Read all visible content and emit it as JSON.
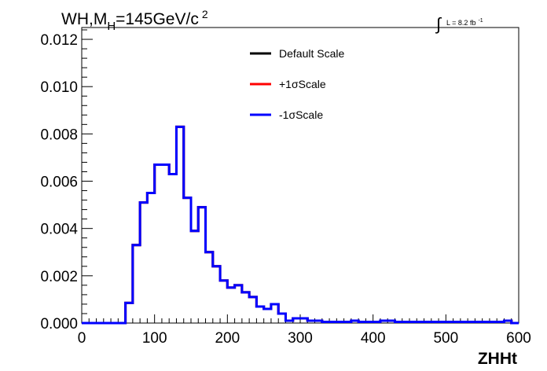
{
  "chart_data": {
    "type": "line",
    "title": {
      "base": "WH,M",
      "subscript": "H",
      "value": "=145GeV/c",
      "superscript": "2"
    },
    "lumi_label": {
      "symbol": "∫",
      "text": "L = 8.2 fb",
      "superscript": "-1"
    },
    "xlabel": "ZHHt",
    "ylabel": "",
    "xlim": [
      0,
      600
    ],
    "ylim": [
      0,
      0.0125
    ],
    "x_ticks": [
      0,
      100,
      200,
      300,
      400,
      500,
      600
    ],
    "x_tick_labels": [
      "0",
      "100",
      "200",
      "300",
      "400",
      "500",
      "600"
    ],
    "y_ticks": [
      0,
      0.002,
      0.004,
      0.006,
      0.008,
      0.01,
      0.012
    ],
    "y_tick_labels": [
      "0.000",
      "0.002",
      "0.004",
      "0.006",
      "0.008",
      "0.010",
      "0.012"
    ],
    "grid": false,
    "legend_position": "top-center",
    "bin_edges": [
      0,
      10,
      20,
      30,
      40,
      50,
      60,
      70,
      80,
      90,
      100,
      110,
      120,
      130,
      140,
      150,
      160,
      170,
      180,
      190,
      200,
      210,
      220,
      230,
      240,
      250,
      260,
      270,
      280,
      290,
      300,
      310,
      320,
      330,
      340,
      350,
      360,
      370,
      380,
      390,
      400,
      410,
      420,
      430,
      440,
      450,
      460,
      470,
      480,
      490,
      500,
      510,
      520,
      530,
      540,
      550,
      560,
      570,
      580,
      590,
      600
    ],
    "series": [
      {
        "name": "Default Scale",
        "color": "#000000",
        "values": [
          0,
          0,
          0,
          0,
          0,
          0,
          0.00085,
          0.0033,
          0.0051,
          0.0055,
          0.0067,
          0.0067,
          0.0063,
          0.0083,
          0.0053,
          0.0039,
          0.0049,
          0.003,
          0.0024,
          0.0018,
          0.0015,
          0.0016,
          0.0013,
          0.0011,
          0.0007,
          0.0006,
          0.0008,
          0.0004,
          0.0001,
          0.0002,
          0.0002,
          0.0001,
          0.0001,
          5e-05,
          5e-05,
          5e-05,
          5e-05,
          0.0001,
          5e-05,
          5e-05,
          5e-05,
          0.0001,
          0.0001,
          5e-05,
          5e-05,
          5e-05,
          5e-05,
          5e-05,
          5e-05,
          5e-05,
          5e-05,
          5e-05,
          5e-05,
          5e-05,
          5e-05,
          5e-05,
          5e-05,
          5e-05,
          0.0001,
          0
        ]
      },
      {
        "name": "+1σScale",
        "color": "#ff0000",
        "values": [
          0,
          0,
          0,
          0,
          0,
          0,
          0.00085,
          0.0033,
          0.0051,
          0.0055,
          0.0067,
          0.0067,
          0.0063,
          0.0083,
          0.0053,
          0.0039,
          0.0049,
          0.003,
          0.0024,
          0.0018,
          0.0015,
          0.0016,
          0.0013,
          0.0011,
          0.0007,
          0.0006,
          0.0008,
          0.0004,
          0.0001,
          0.0002,
          0.0002,
          0.0001,
          0.0001,
          5e-05,
          5e-05,
          5e-05,
          5e-05,
          0.0001,
          5e-05,
          5e-05,
          5e-05,
          0.0001,
          0.0001,
          5e-05,
          5e-05,
          5e-05,
          5e-05,
          5e-05,
          5e-05,
          5e-05,
          5e-05,
          5e-05,
          5e-05,
          5e-05,
          5e-05,
          5e-05,
          5e-05,
          5e-05,
          0.0001,
          0
        ]
      },
      {
        "name": "-1σScale",
        "color": "#0000ff",
        "values": [
          0,
          0,
          0,
          0,
          0,
          0,
          0.00085,
          0.0033,
          0.0051,
          0.0055,
          0.0067,
          0.0067,
          0.0063,
          0.0083,
          0.0053,
          0.0039,
          0.0049,
          0.003,
          0.0024,
          0.0018,
          0.0015,
          0.0016,
          0.0013,
          0.0011,
          0.0007,
          0.0006,
          0.0008,
          0.0004,
          0.0001,
          0.0002,
          0.0002,
          0.0001,
          0.0001,
          5e-05,
          5e-05,
          5e-05,
          5e-05,
          0.0001,
          5e-05,
          5e-05,
          5e-05,
          0.0001,
          0.0001,
          5e-05,
          5e-05,
          5e-05,
          5e-05,
          5e-05,
          5e-05,
          5e-05,
          5e-05,
          5e-05,
          5e-05,
          5e-05,
          5e-05,
          5e-05,
          5e-05,
          5e-05,
          0.0001,
          0
        ]
      }
    ]
  }
}
